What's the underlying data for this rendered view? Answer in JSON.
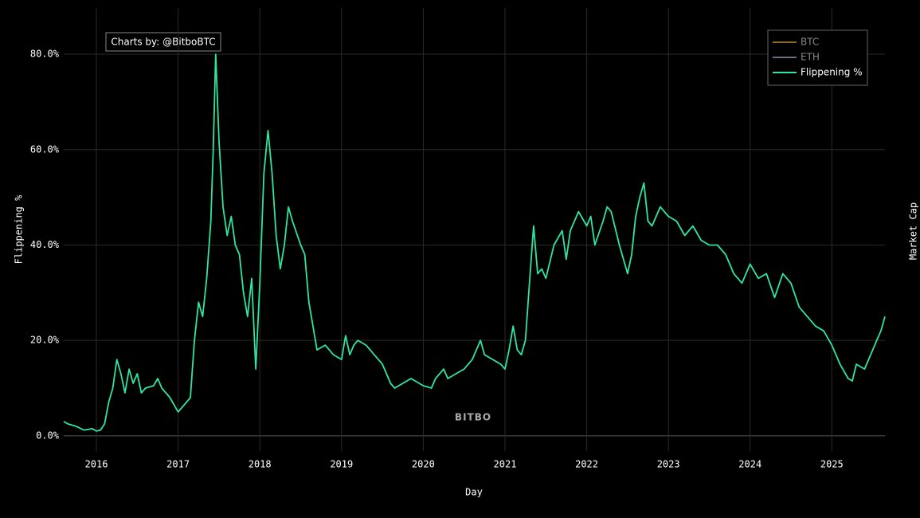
{
  "chart_data": {
    "type": "line",
    "x_label": "Day",
    "y_label": "Flippening %",
    "y2_label": "Market Cap",
    "annotation": "Charts by: @BitboBTC",
    "watermark": "BITBO",
    "grid": true,
    "legend_position": "top-right",
    "xlim": [
      2015.6,
      2025.65
    ],
    "xticks": [
      2016,
      2017,
      2018,
      2019,
      2020,
      2021,
      2022,
      2023,
      2024,
      2025
    ],
    "ylim": [
      -3.2,
      89.7
    ],
    "yticks": [
      {
        "value": 0,
        "label": "0.0%"
      },
      {
        "value": 20,
        "label": "20.0%"
      },
      {
        "value": 40,
        "label": "40.0%"
      },
      {
        "value": 60,
        "label": "60.0%"
      },
      {
        "value": 80,
        "label": "80.0%"
      }
    ],
    "x": [
      2015.6,
      2015.65,
      2015.75,
      2015.85,
      2015.95,
      2016.0,
      2016.05,
      2016.1,
      2016.15,
      2016.2,
      2016.25,
      2016.3,
      2016.35,
      2016.4,
      2016.45,
      2016.5,
      2016.55,
      2016.6,
      2016.7,
      2016.75,
      2016.8,
      2016.9,
      2017.0,
      2017.05,
      2017.1,
      2017.15,
      2017.2,
      2017.25,
      2017.3,
      2017.35,
      2017.4,
      2017.43,
      2017.46,
      2017.5,
      2017.55,
      2017.6,
      2017.65,
      2017.7,
      2017.75,
      2017.8,
      2017.85,
      2017.9,
      2017.95,
      2018.0,
      2018.05,
      2018.1,
      2018.15,
      2018.2,
      2018.25,
      2018.3,
      2018.35,
      2018.4,
      2018.5,
      2018.55,
      2018.6,
      2018.7,
      2018.8,
      2018.9,
      2019.0,
      2019.05,
      2019.1,
      2019.15,
      2019.2,
      2019.3,
      2019.4,
      2019.5,
      2019.55,
      2019.6,
      2019.65,
      2019.75,
      2019.85,
      2019.95,
      2020.0,
      2020.1,
      2020.15,
      2020.25,
      2020.3,
      2020.4,
      2020.5,
      2020.6,
      2020.7,
      2020.75,
      2020.85,
      2020.95,
      2021.0,
      2021.05,
      2021.1,
      2021.15,
      2021.2,
      2021.25,
      2021.3,
      2021.35,
      2021.4,
      2021.45,
      2021.5,
      2021.6,
      2021.7,
      2021.75,
      2021.8,
      2021.9,
      2022.0,
      2022.05,
      2022.1,
      2022.2,
      2022.25,
      2022.3,
      2022.4,
      2022.5,
      2022.55,
      2022.6,
      2022.65,
      2022.7,
      2022.75,
      2022.8,
      2022.9,
      2023.0,
      2023.1,
      2023.2,
      2023.3,
      2023.4,
      2023.5,
      2023.6,
      2023.7,
      2023.8,
      2023.9,
      2024.0,
      2024.1,
      2024.2,
      2024.3,
      2024.4,
      2024.5,
      2024.6,
      2024.7,
      2024.8,
      2024.9,
      2025.0,
      2025.1,
      2025.2,
      2025.25,
      2025.3,
      2025.4,
      2025.5,
      2025.55,
      2025.6,
      2025.65
    ],
    "series": [
      {
        "name": "BTC",
        "color": "#8a6a2a"
      },
      {
        "name": "ETH",
        "color": "#6a7080"
      },
      {
        "name": "Flippening %",
        "color": "#2ee6a0",
        "values": [
          3,
          2.5,
          2,
          1.2,
          1.5,
          1,
          1.2,
          2.5,
          7,
          10,
          16,
          13,
          9,
          14,
          11,
          13,
          9,
          10,
          10.5,
          12,
          10,
          8,
          5,
          6,
          7,
          8,
          20,
          28,
          25,
          33,
          45,
          60,
          80,
          62,
          48,
          42,
          46,
          40,
          38,
          30,
          25,
          33,
          14,
          32,
          55,
          64,
          55,
          42,
          35,
          40,
          48,
          45,
          40,
          38,
          28,
          18,
          19,
          17,
          16,
          21,
          17,
          19,
          20,
          19,
          17,
          15,
          13,
          11,
          10,
          11,
          12,
          11,
          10.5,
          10,
          12,
          14,
          12,
          13,
          14,
          16,
          20,
          17,
          16,
          15,
          14,
          18,
          23,
          18,
          17,
          20,
          32,
          44,
          34,
          35,
          33,
          40,
          43,
          37,
          43,
          47,
          44,
          46,
          40,
          45,
          48,
          47,
          40,
          34,
          38,
          46,
          50,
          53,
          45,
          44,
          48,
          46,
          45,
          42,
          44,
          41,
          40,
          40,
          38,
          34,
          32,
          36,
          33,
          34,
          29,
          34,
          32,
          27,
          25,
          23,
          22,
          19,
          15,
          12,
          11.5,
          15,
          14,
          18,
          20,
          22,
          25
        ]
      }
    ]
  }
}
